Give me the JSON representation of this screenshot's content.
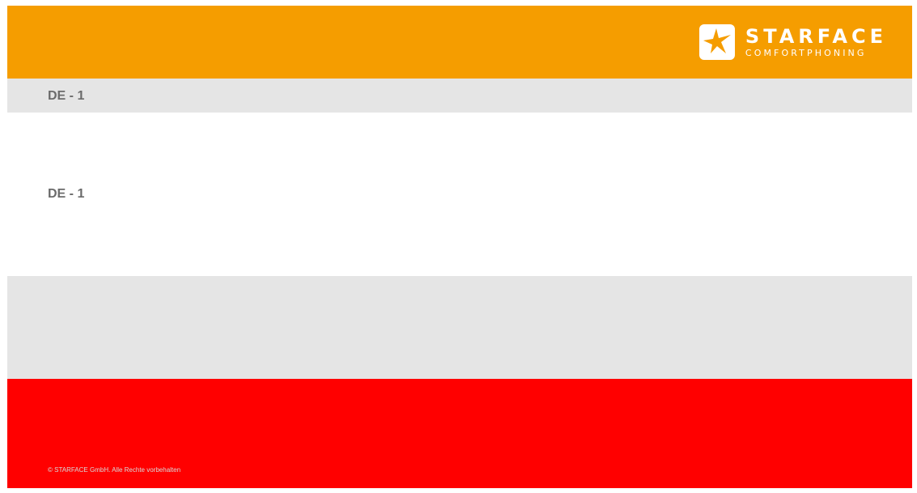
{
  "brand": {
    "name": "STARFACE",
    "tagline": "COMFORTPHONING",
    "logo_icon": "star-logo-icon",
    "colors": {
      "header": "#f59d00",
      "band": "#e5e5e5",
      "footer": "#ff0000",
      "text": "#6b6b6b"
    }
  },
  "slide": {
    "title": "DE - 1",
    "subtitle": "DE - 1"
  },
  "footer": {
    "copyright": "© STARFACE GmbH. Alle Rechte vorbehalten"
  }
}
